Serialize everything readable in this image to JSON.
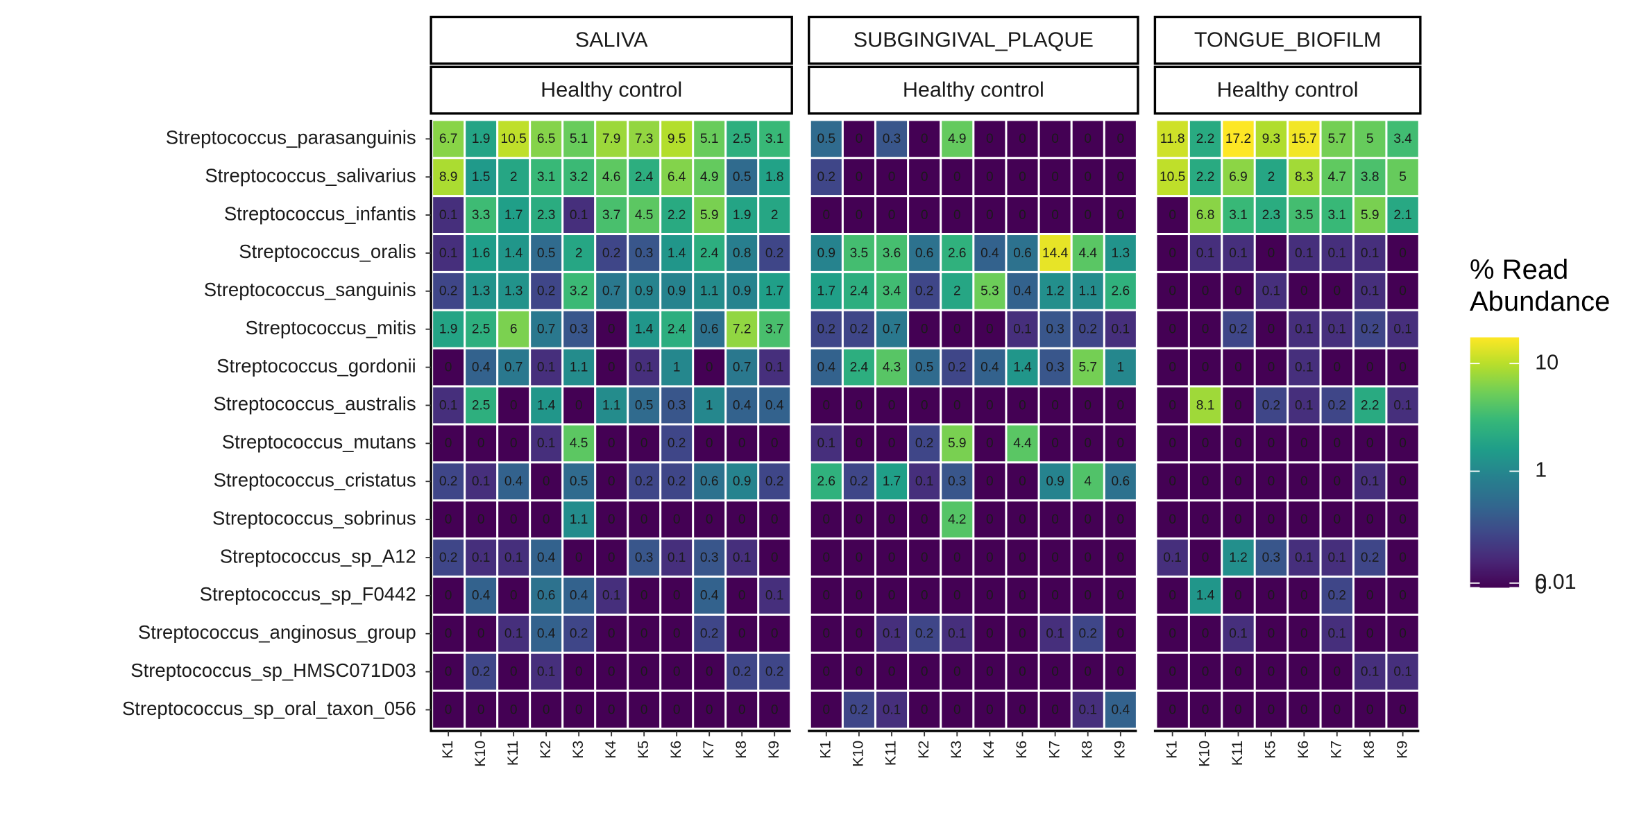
{
  "chart_data": {
    "type": "heatmap",
    "rows": [
      "Streptococcus_parasanguinis",
      "Streptococcus_salivarius",
      "Streptococcus_infantis",
      "Streptococcus_oralis",
      "Streptococcus_sanguinis",
      "Streptococcus_mitis",
      "Streptococcus_gordonii",
      "Streptococcus_australis",
      "Streptococcus_mutans",
      "Streptococcus_cristatus",
      "Streptococcus_sobrinus",
      "Streptococcus_sp_A12",
      "Streptococcus_sp_F0442",
      "Streptococcus_anginosus_group",
      "Streptococcus_sp_HMSC071D03",
      "Streptococcus_sp_oral_taxon_056"
    ],
    "panels": [
      {
        "strip": "SALIVA",
        "substrip": "Healthy control",
        "columns": [
          "K1",
          "K10",
          "K11",
          "K2",
          "K3",
          "K4",
          "K5",
          "K6",
          "K7",
          "K8",
          "K9"
        ],
        "values": [
          [
            6.7,
            1.9,
            10.5,
            6.5,
            5.1,
            7.9,
            7.3,
            9.5,
            5.1,
            2.5,
            3.1
          ],
          [
            8.9,
            1.5,
            2,
            3.1,
            3.2,
            4.6,
            2.4,
            6.4,
            4.9,
            0.5,
            1.8
          ],
          [
            0.1,
            3.3,
            1.7,
            2.3,
            0.1,
            3.7,
            4.5,
            2.2,
            5.9,
            1.9,
            2
          ],
          [
            0.1,
            1.6,
            1.4,
            0.5,
            2,
            0.2,
            0.3,
            1.4,
            2.4,
            0.8,
            0.2
          ],
          [
            0.2,
            1.3,
            1.3,
            0.2,
            3.2,
            0.7,
            0.9,
            0.9,
            1.1,
            0.9,
            1.7
          ],
          [
            1.9,
            2.5,
            6,
            0.7,
            0.3,
            0,
            1.4,
            2.4,
            0.6,
            7.2,
            3.7
          ],
          [
            0,
            0.4,
            0.7,
            0.1,
            1.1,
            0,
            0.1,
            1,
            0,
            0.7,
            0.1
          ],
          [
            0.1,
            2.5,
            0,
            1.4,
            0,
            1.1,
            0.5,
            0.3,
            1,
            0.4,
            0.4
          ],
          [
            0,
            0,
            0,
            0.1,
            4.5,
            0,
            0,
            0.2,
            0,
            0,
            0
          ],
          [
            0.2,
            0.1,
            0.4,
            0,
            0.5,
            0,
            0.2,
            0.2,
            0.6,
            0.9,
            0.2
          ],
          [
            0,
            0,
            0,
            0,
            1.1,
            0,
            0,
            0,
            0,
            0,
            0
          ],
          [
            0.2,
            0.1,
            0.1,
            0.4,
            0,
            0,
            0.3,
            0.1,
            0.3,
            0.1,
            0
          ],
          [
            0,
            0.4,
            0,
            0.6,
            0.4,
            0.1,
            0,
            0,
            0.4,
            0,
            0.1
          ],
          [
            0,
            0,
            0.1,
            0.4,
            0.2,
            0,
            0,
            0,
            0.2,
            0,
            0
          ],
          [
            0,
            0.2,
            0,
            0.1,
            0,
            0,
            0,
            0,
            0,
            0.2,
            0.2
          ],
          [
            0,
            0,
            0,
            0,
            0,
            0,
            0,
            0,
            0,
            0,
            0
          ]
        ]
      },
      {
        "strip": "SUBGINGIVAL_PLAQUE",
        "substrip": "Healthy control",
        "columns": [
          "K1",
          "K10",
          "K11",
          "K2",
          "K3",
          "K4",
          "K6",
          "K7",
          "K8",
          "K9"
        ],
        "values": [
          [
            0.5,
            0,
            0.3,
            0,
            4.9,
            0,
            0,
            0,
            0,
            0
          ],
          [
            0.2,
            0,
            0,
            0,
            0,
            0,
            0,
            0,
            0,
            0
          ],
          [
            0,
            0,
            0,
            0,
            0,
            0,
            0,
            0,
            0,
            0
          ],
          [
            0.9,
            3.5,
            3.6,
            0.6,
            2.6,
            0.4,
            0.6,
            14.4,
            4.4,
            1.3
          ],
          [
            1.7,
            2.4,
            3.4,
            0.2,
            2,
            5.3,
            0.4,
            1.2,
            1.1,
            2.6
          ],
          [
            0.2,
            0.2,
            0.7,
            0,
            0,
            0,
            0.1,
            0.3,
            0.2,
            0.1
          ],
          [
            0.4,
            2.4,
            4.3,
            0.5,
            0.2,
            0.4,
            1.4,
            0.3,
            5.7,
            1
          ],
          [
            0,
            0,
            0,
            0,
            0,
            0,
            0,
            0,
            0,
            0
          ],
          [
            0.1,
            0,
            0,
            0.2,
            5.9,
            0,
            4.4,
            0,
            0,
            0
          ],
          [
            2.6,
            0.2,
            1.7,
            0.1,
            0.3,
            0,
            0,
            0.9,
            4,
            0.6
          ],
          [
            0,
            0,
            0,
            0,
            4.2,
            0,
            0,
            0,
            0,
            0
          ],
          [
            0,
            0,
            0,
            0,
            0,
            0,
            0,
            0,
            0,
            0
          ],
          [
            0,
            0,
            0,
            0,
            0,
            0,
            0,
            0,
            0,
            0
          ],
          [
            0,
            0,
            0.1,
            0.2,
            0.1,
            0,
            0,
            0.1,
            0.2,
            0
          ],
          [
            0,
            0,
            0,
            0,
            0,
            0,
            0,
            0,
            0,
            0
          ],
          [
            0,
            0.2,
            0.1,
            0,
            0,
            0,
            0,
            0,
            0.1,
            0.4
          ]
        ]
      },
      {
        "strip": "TONGUE_BIOFILM",
        "substrip": "Healthy control",
        "columns": [
          "K1",
          "K10",
          "K11",
          "K5",
          "K6",
          "K7",
          "K8",
          "K9"
        ],
        "values": [
          [
            11.8,
            2.2,
            17.2,
            9.3,
            15.7,
            5.7,
            5,
            3.4
          ],
          [
            10.5,
            2.2,
            6.9,
            2,
            8.3,
            4.7,
            3.8,
            5
          ],
          [
            0,
            6.8,
            3.1,
            2.3,
            3.5,
            3.1,
            5.9,
            2.1
          ],
          [
            0,
            0.1,
            0.1,
            0,
            0.1,
            0.1,
            0.1,
            0
          ],
          [
            0,
            0,
            0,
            0.1,
            0,
            0,
            0.1,
            0
          ],
          [
            0,
            0,
            0.2,
            0,
            0.1,
            0.1,
            0.2,
            0.1
          ],
          [
            0,
            0,
            0,
            0,
            0.1,
            0,
            0,
            0
          ],
          [
            0,
            8.1,
            0,
            0.2,
            0.1,
            0.2,
            2.2,
            0.1
          ],
          [
            0,
            0,
            0,
            0,
            0,
            0,
            0,
            0
          ],
          [
            0,
            0,
            0,
            0,
            0,
            0,
            0.1,
            0
          ],
          [
            0,
            0,
            0,
            0,
            0,
            0,
            0,
            0
          ],
          [
            0.1,
            0,
            1.2,
            0.3,
            0.1,
            0.1,
            0.2,
            0
          ],
          [
            0,
            1.4,
            0,
            0,
            0,
            0.2,
            0,
            0
          ],
          [
            0,
            0,
            0.1,
            0,
            0,
            0.1,
            0,
            0
          ],
          [
            0,
            0,
            0,
            0,
            0,
            0,
            0.1,
            0.1
          ],
          [
            0,
            0,
            0,
            0,
            0,
            0,
            0,
            0
          ]
        ]
      }
    ],
    "colorbar": {
      "title": "% Read Abundance",
      "lim": [
        0,
        17.2
      ],
      "ticks": [
        0,
        0.01,
        1,
        10
      ],
      "colors": [
        "#440154",
        "#482878",
        "#3e4989",
        "#31688e",
        "#26828e",
        "#1f9e89",
        "#35b779",
        "#6ece58",
        "#b5de2b",
        "#fde725"
      ]
    }
  }
}
